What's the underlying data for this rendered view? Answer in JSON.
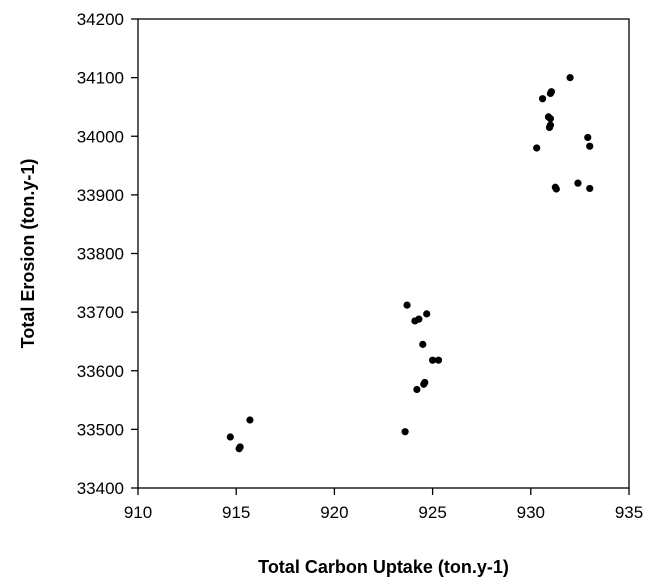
{
  "chart_data": {
    "type": "scatter",
    "title": "",
    "xlabel": "Total Carbon Uptake (ton.y-1)",
    "ylabel": "Total Erosion (ton.y-1)",
    "xlim": [
      910,
      935
    ],
    "ylim": [
      33400,
      34200
    ],
    "xticks": [
      910,
      915,
      920,
      925,
      930,
      935
    ],
    "yticks": [
      33400,
      33500,
      33600,
      33700,
      33800,
      33900,
      34000,
      34100,
      34200
    ],
    "grid": false,
    "legend": "none",
    "marker_color": "#000000",
    "series": [
      {
        "points": [
          {
            "x": 914.7,
            "y": 33487
          },
          {
            "x": 915.2,
            "y": 33470
          },
          {
            "x": 915.15,
            "y": 33467
          },
          {
            "x": 915.7,
            "y": 33516
          },
          {
            "x": 923.6,
            "y": 33496
          },
          {
            "x": 923.7,
            "y": 33712
          },
          {
            "x": 924.1,
            "y": 33685
          },
          {
            "x": 924.3,
            "y": 33688
          },
          {
            "x": 924.7,
            "y": 33697
          },
          {
            "x": 924.5,
            "y": 33645
          },
          {
            "x": 925.0,
            "y": 33618
          },
          {
            "x": 925.3,
            "y": 33618
          },
          {
            "x": 924.2,
            "y": 33568
          },
          {
            "x": 924.6,
            "y": 33580
          },
          {
            "x": 924.55,
            "y": 33577
          },
          {
            "x": 932.0,
            "y": 34100
          },
          {
            "x": 931.05,
            "y": 34076
          },
          {
            "x": 931.0,
            "y": 34073
          },
          {
            "x": 930.6,
            "y": 34064
          },
          {
            "x": 930.9,
            "y": 34033
          },
          {
            "x": 931.0,
            "y": 34030
          },
          {
            "x": 931.0,
            "y": 34019
          },
          {
            "x": 930.95,
            "y": 34015
          },
          {
            "x": 930.3,
            "y": 33980
          },
          {
            "x": 932.9,
            "y": 33998
          },
          {
            "x": 933.0,
            "y": 33983
          },
          {
            "x": 931.25,
            "y": 33913
          },
          {
            "x": 931.3,
            "y": 33910
          },
          {
            "x": 932.4,
            "y": 33920
          },
          {
            "x": 933.0,
            "y": 33911
          }
        ]
      }
    ]
  }
}
